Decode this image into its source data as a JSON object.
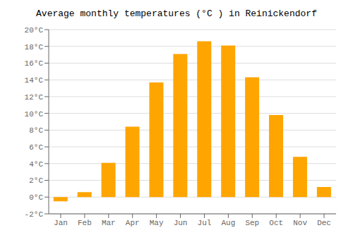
{
  "chart_data": {
    "type": "bar",
    "title": "Average monthly temperatures (°C ) in Reinickendorf",
    "categories": [
      "Jan",
      "Feb",
      "Mar",
      "Apr",
      "May",
      "Jun",
      "Jul",
      "Aug",
      "Sep",
      "Oct",
      "Nov",
      "Dec"
    ],
    "values": [
      -0.5,
      0.6,
      4.1,
      8.4,
      13.7,
      17.1,
      18.6,
      18.1,
      14.3,
      9.8,
      4.8,
      1.2
    ],
    "color": "#FFA500",
    "ylim": [
      -2,
      20
    ],
    "yticks": [
      {
        "value": -2,
        "label": "-2°C"
      },
      {
        "value": 0,
        "label": "0°C"
      },
      {
        "value": 2,
        "label": "2°C"
      },
      {
        "value": 4,
        "label": "4°C"
      },
      {
        "value": 6,
        "label": "6°C"
      },
      {
        "value": 8,
        "label": "8°C"
      },
      {
        "value": 10,
        "label": "10°C"
      },
      {
        "value": 12,
        "label": "12°C"
      },
      {
        "value": 14,
        "label": "14°C"
      },
      {
        "value": 16,
        "label": "16°C"
      },
      {
        "value": 18,
        "label": "18°C"
      },
      {
        "value": 20,
        "label": "20°C"
      }
    ],
    "grid": true
  }
}
